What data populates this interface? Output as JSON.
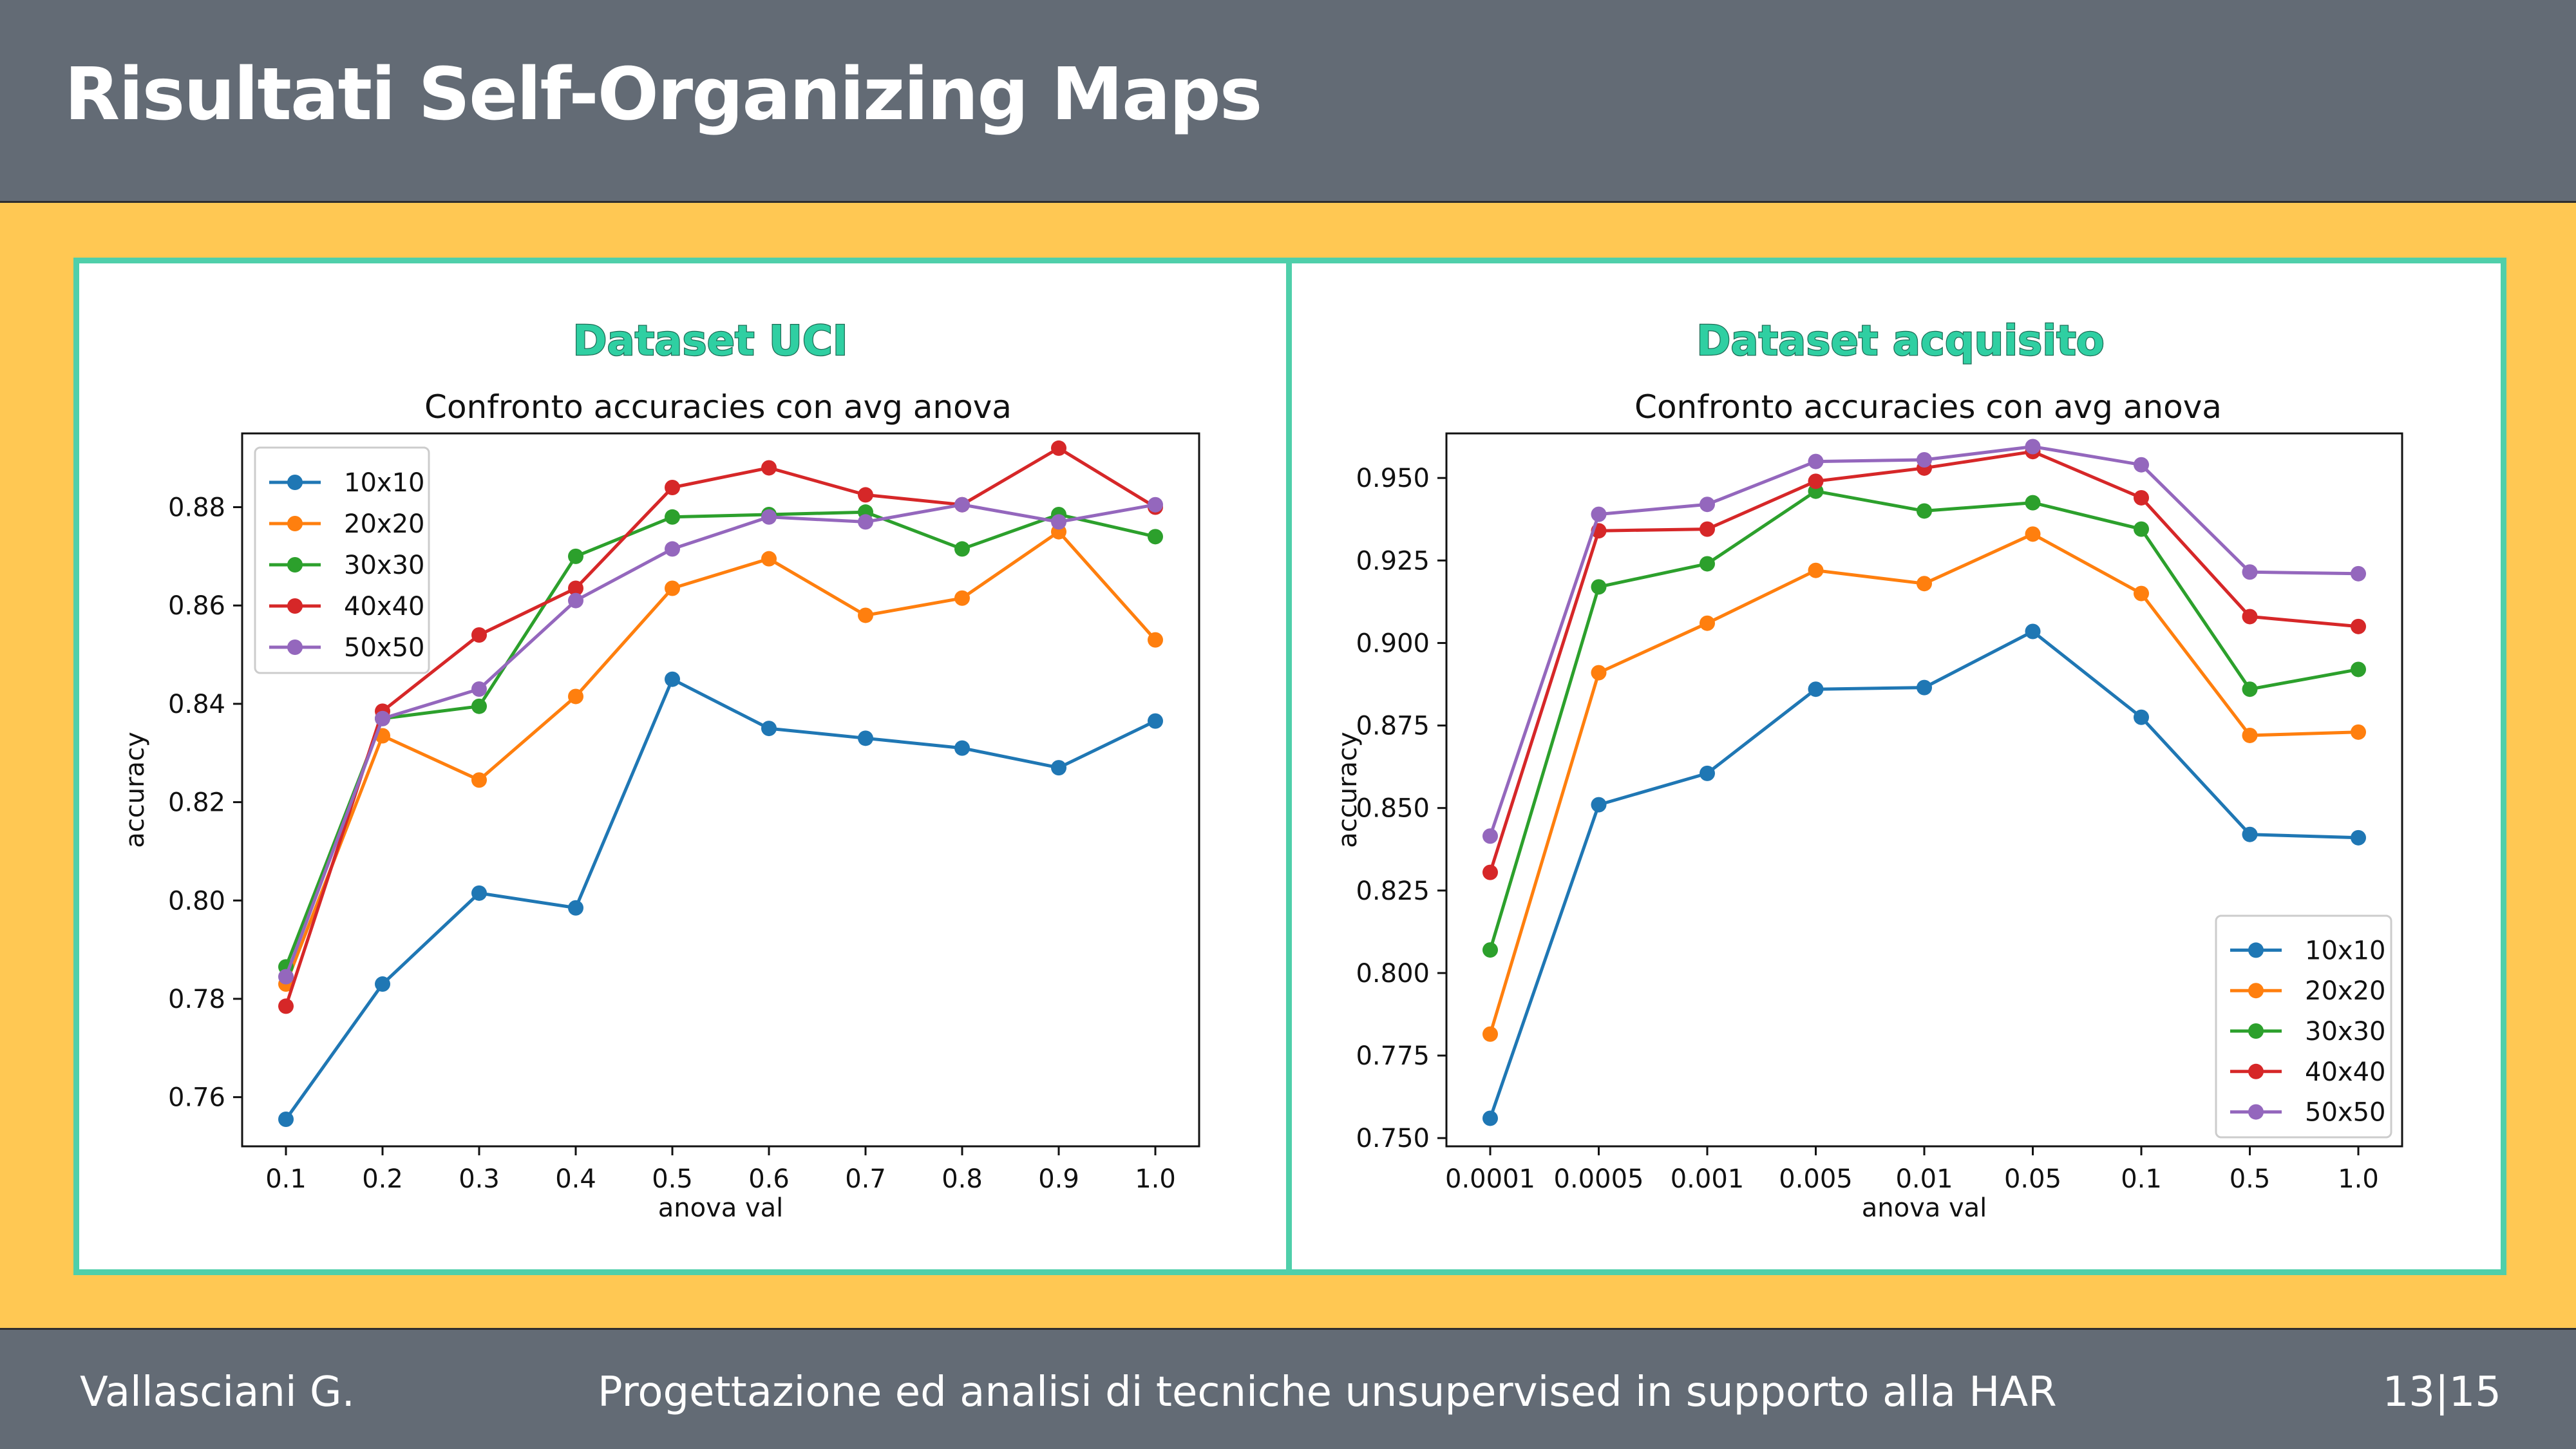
{
  "slide": {
    "title": "Risultati Self-Organizing Maps",
    "footer": {
      "author": "Vallasciani G.",
      "subtitle": "Progettazione ed analisi di tecniche unsupervised in supporto alla HAR",
      "page": "13|15"
    },
    "colors": {
      "header_bg": "#636b75",
      "content_bg": "#ffc853",
      "panel_border": "#4fcfaa",
      "heading_text": "#2fcfa2"
    }
  },
  "panels": [
    {
      "heading": "Dataset UCI",
      "chart_data": {
        "type": "line",
        "title": "Confronto accuracies con avg anova",
        "xlabel": "anova val",
        "ylabel": "accuracy",
        "categories": [
          "0.1",
          "0.2",
          "0.3",
          "0.4",
          "0.5",
          "0.6",
          "0.7",
          "0.8",
          "0.9",
          "1.0"
        ],
        "ylim": [
          0.75,
          0.895
        ],
        "yticks": [
          "0.76",
          "0.78",
          "0.80",
          "0.82",
          "0.84",
          "0.86",
          "0.88"
        ],
        "legend_position": "upper-left",
        "grid": false,
        "series": [
          {
            "name": "10x10",
            "color": "#1f77b4",
            "values": [
              0.7555,
              0.783,
              0.8015,
              0.7985,
              0.845,
              0.835,
              0.833,
              0.831,
              0.827,
              0.8365
            ]
          },
          {
            "name": "20x20",
            "color": "#ff7f0e",
            "values": [
              0.783,
              0.8335,
              0.8245,
              0.8415,
              0.8635,
              0.8695,
              0.858,
              0.8615,
              0.875,
              0.853
            ]
          },
          {
            "name": "30x30",
            "color": "#2ca02c",
            "values": [
              0.7865,
              0.837,
              0.8395,
              0.87,
              0.878,
              0.8785,
              0.879,
              0.8715,
              0.8785,
              0.874
            ]
          },
          {
            "name": "40x40",
            "color": "#d62728",
            "values": [
              0.7785,
              0.8385,
              0.854,
              0.8635,
              0.884,
              0.888,
              0.8825,
              0.8805,
              0.892,
              0.88
            ]
          },
          {
            "name": "50x50",
            "color": "#9467bd",
            "values": [
              0.7845,
              0.837,
              0.843,
              0.861,
              0.8715,
              0.878,
              0.877,
              0.8805,
              0.877,
              0.8805
            ]
          }
        ]
      }
    },
    {
      "heading": "Dataset acquisito",
      "chart_data": {
        "type": "line",
        "title": "Confronto accuracies con avg anova",
        "xlabel": "anova val",
        "ylabel": "accuracy",
        "categories": [
          "0.0001",
          "0.0005",
          "0.001",
          "0.005",
          "0.01",
          "0.05",
          "0.1",
          "0.5",
          "1.0"
        ],
        "ylim": [
          0.7475,
          0.9635
        ],
        "yticks": [
          "0.750",
          "0.775",
          "0.800",
          "0.825",
          "0.850",
          "0.875",
          "0.900",
          "0.925",
          "0.950"
        ],
        "legend_position": "lower-right",
        "grid": false,
        "series": [
          {
            "name": "10x10",
            "color": "#1f77b4",
            "values": [
              0.756,
              0.851,
              0.8605,
              0.886,
              0.8865,
              0.9035,
              0.8775,
              0.842,
              0.841
            ]
          },
          {
            "name": "20x20",
            "color": "#ff7f0e",
            "values": [
              0.7815,
              0.891,
              0.906,
              0.922,
              0.918,
              0.933,
              0.915,
              0.872,
              0.873
            ]
          },
          {
            "name": "30x30",
            "color": "#2ca02c",
            "values": [
              0.807,
              0.917,
              0.924,
              0.946,
              0.94,
              0.9425,
              0.9345,
              0.886,
              0.892
            ]
          },
          {
            "name": "40x40",
            "color": "#d62728",
            "values": [
              0.8305,
              0.934,
              0.9345,
              0.949,
              0.953,
              0.958,
              0.944,
              0.908,
              0.905
            ]
          },
          {
            "name": "50x50",
            "color": "#9467bd",
            "values": [
              0.8415,
              0.939,
              0.942,
              0.955,
              0.9555,
              0.9595,
              0.954,
              0.9215,
              0.921
            ]
          }
        ]
      }
    }
  ]
}
